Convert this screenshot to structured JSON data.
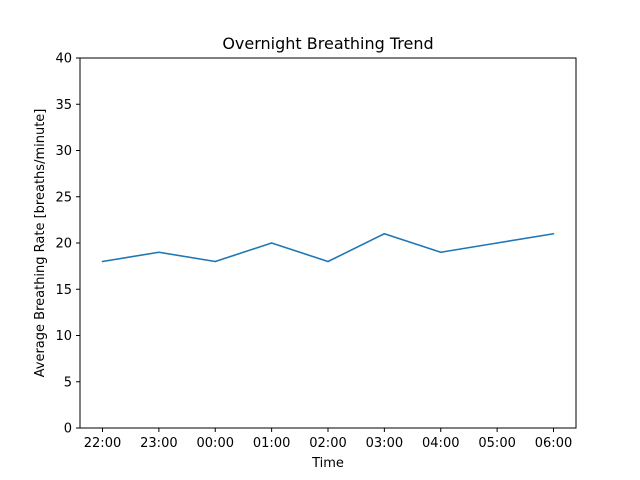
{
  "chart_data": {
    "type": "line",
    "title": "Overnight Breathing Trend",
    "xlabel": "Time",
    "ylabel": "Average Breathing Rate [breaths/minute]",
    "categories": [
      "22:00",
      "23:00",
      "00:00",
      "01:00",
      "02:00",
      "03:00",
      "04:00",
      "05:00",
      "06:00"
    ],
    "series": [
      {
        "values": [
          18,
          19,
          18,
          20,
          18,
          21,
          19,
          20,
          21
        ],
        "color": "#1f77b4"
      }
    ],
    "ylim": [
      0,
      40
    ],
    "yticks": [
      0,
      5,
      10,
      15,
      20,
      25,
      30,
      35,
      40
    ],
    "grid": false,
    "legend": "none"
  }
}
